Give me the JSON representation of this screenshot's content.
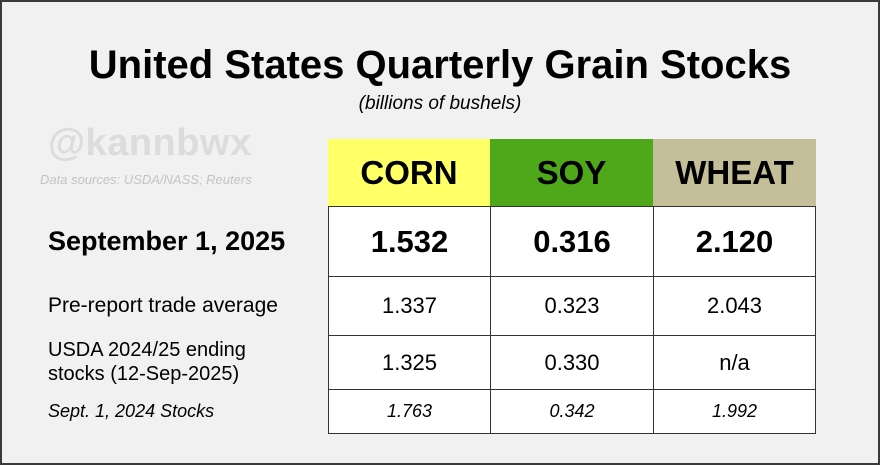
{
  "chart_data": {
    "type": "table",
    "title": "United States Quarterly Grain Stocks",
    "subtitle": "(billions of bushels)",
    "watermark": "@kannbwx",
    "source": "Data sources: USDA/NASS; Reuters",
    "columns": [
      {
        "label": "CORN",
        "color": "#ffff66"
      },
      {
        "label": "SOY",
        "color": "#4ea819"
      },
      {
        "label": "WHEAT",
        "color": "#c5bf99"
      }
    ],
    "rows": [
      {
        "label": "September 1, 2025",
        "values": [
          "1.532",
          "0.316",
          "2.120"
        ]
      },
      {
        "label": "Pre-report trade average",
        "values": [
          "1.337",
          "0.323",
          "2.043"
        ]
      },
      {
        "label": "USDA 2024/25 ending stocks (12-Sep-2025)",
        "label_lines": [
          "USDA 2024/25 ending",
          "stocks (12-Sep-2025)"
        ],
        "values": [
          "1.325",
          "0.330",
          "n/a"
        ]
      },
      {
        "label": "Sept. 1, 2024 Stocks",
        "values": [
          "1.763",
          "0.342",
          "1.992"
        ]
      }
    ]
  }
}
